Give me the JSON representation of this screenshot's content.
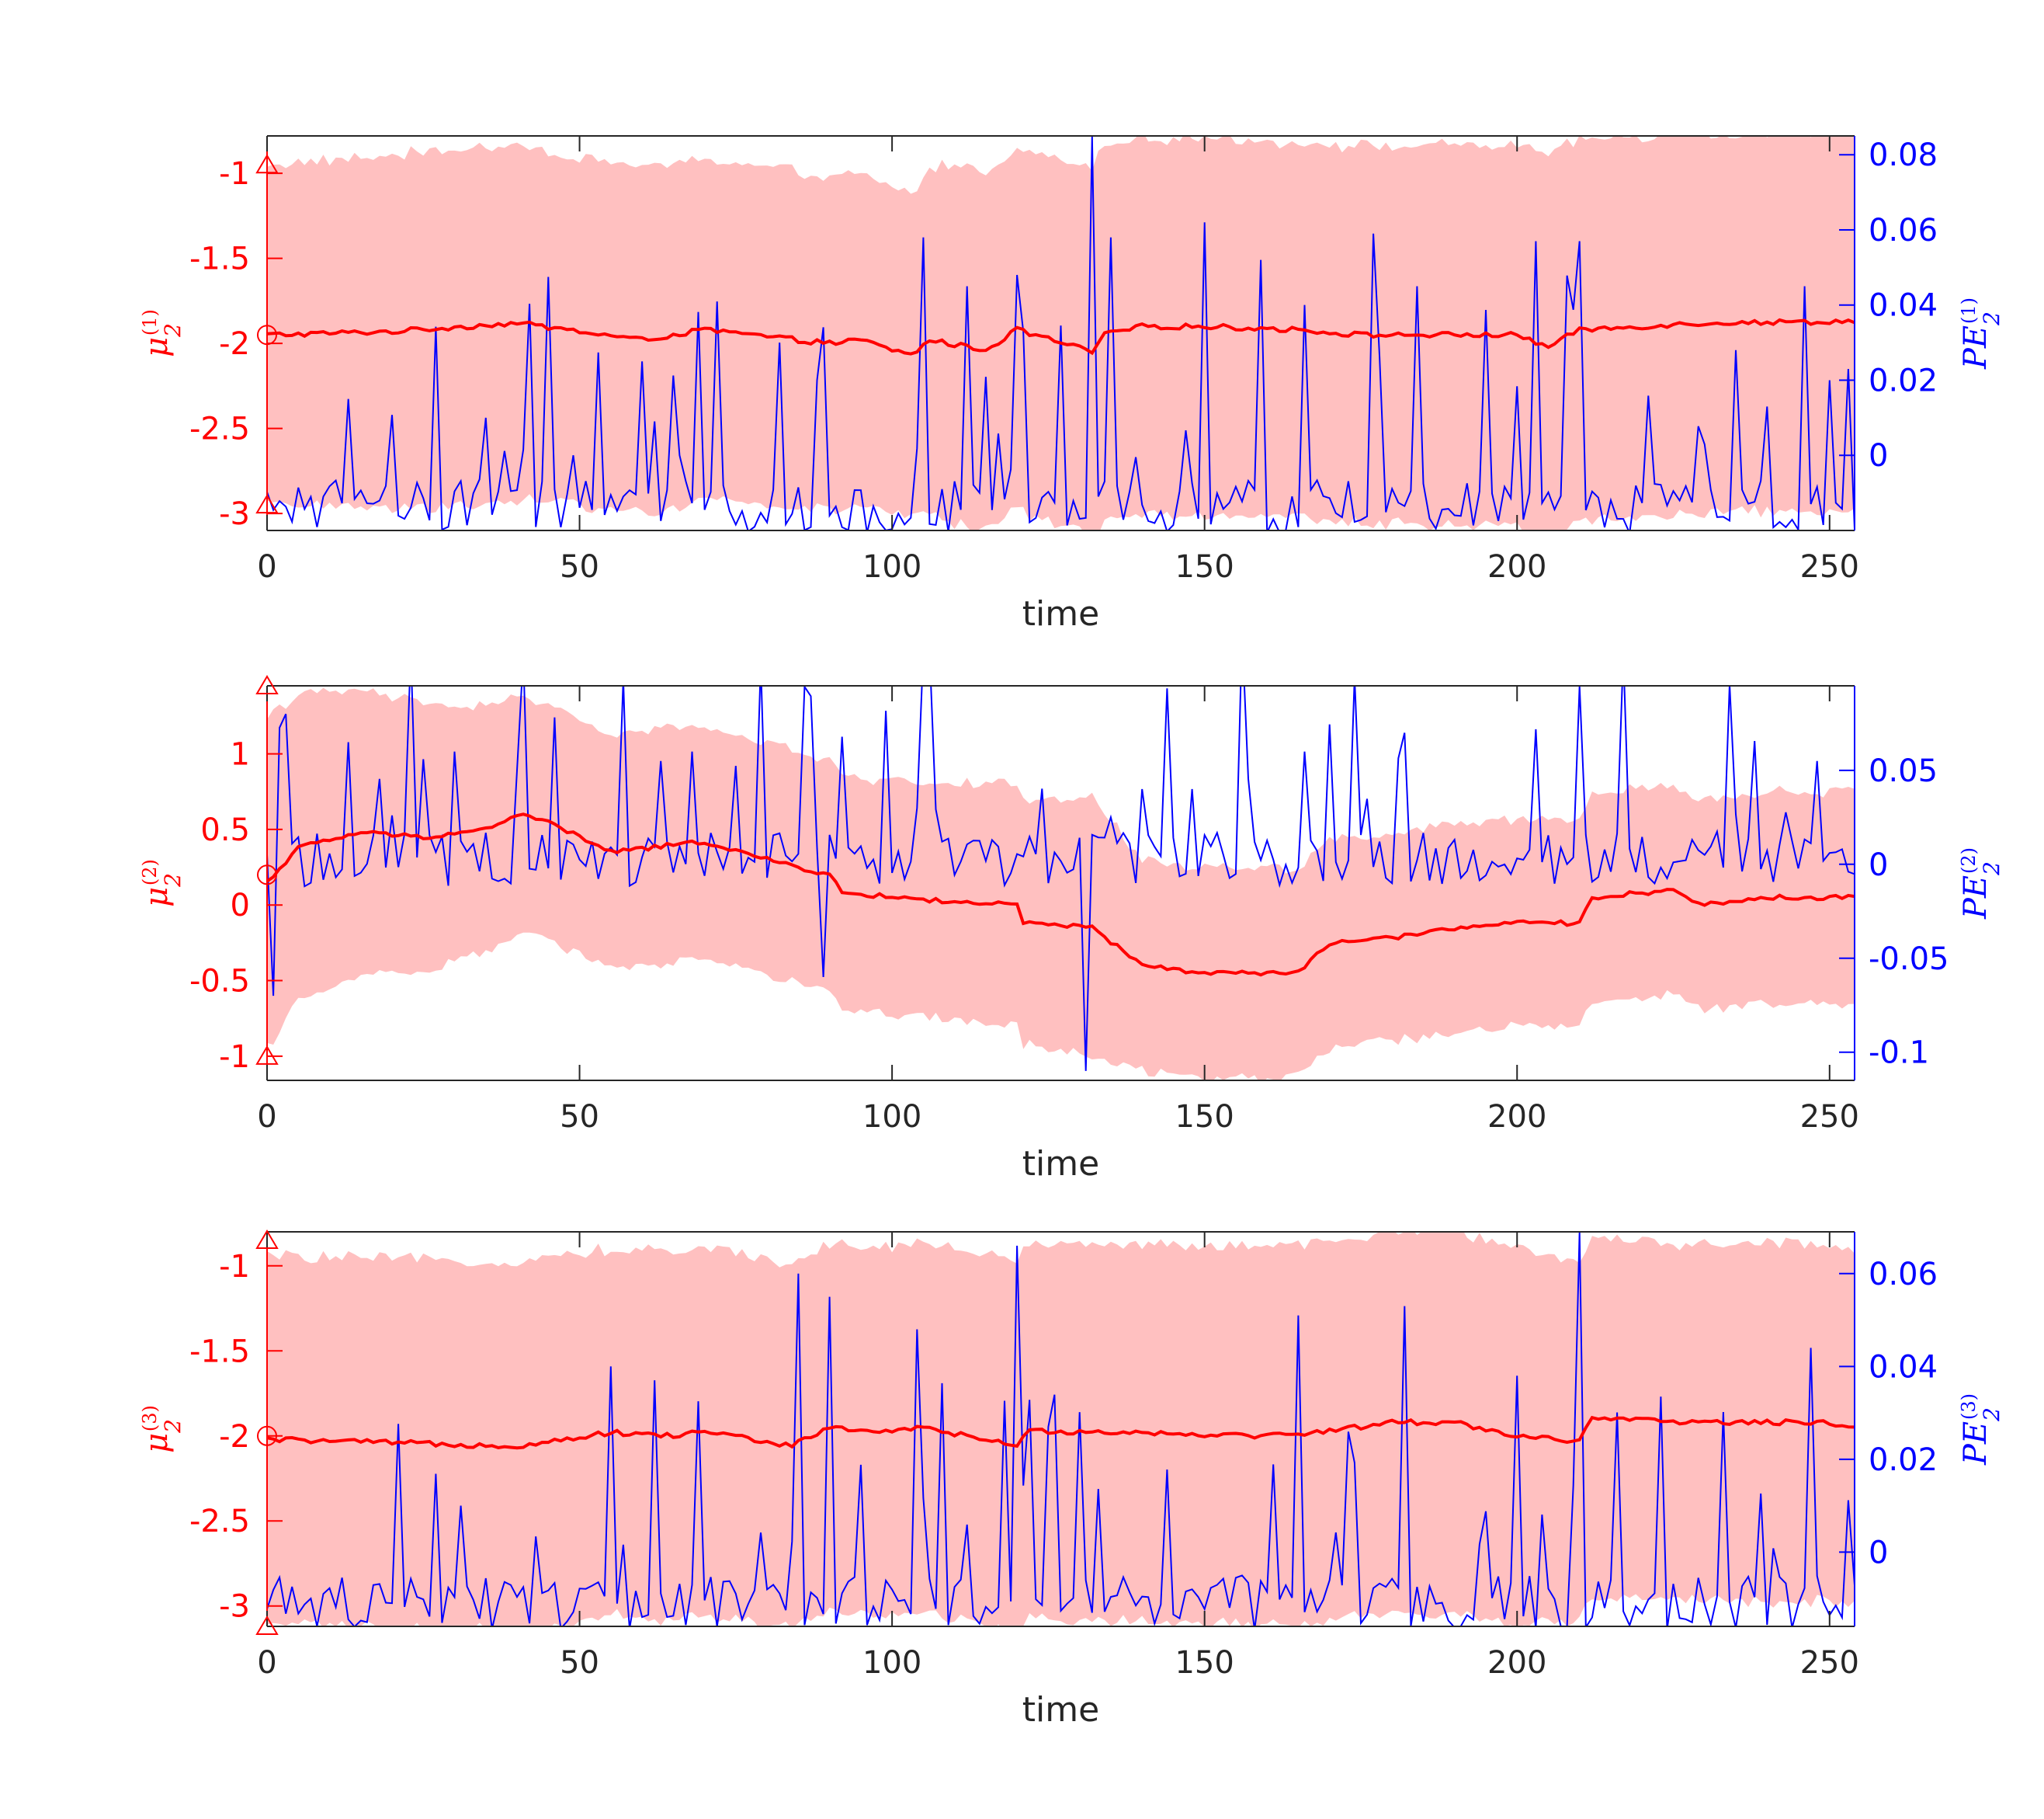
{
  "colors": {
    "mean": "#ff0000",
    "band": "#ffc0c0",
    "pe": "#0000ff",
    "axis": "#262626"
  },
  "chart_data": [
    {
      "type": "line",
      "xlabel": "time",
      "xlim": [
        0,
        254
      ],
      "xticks": [
        0,
        50,
        100,
        150,
        200,
        250
      ],
      "xtick_labels": [
        "0",
        "50",
        "100",
        "150",
        "200",
        "250"
      ],
      "left_axis": {
        "label": "μ2(1)",
        "label_base": "μ",
        "label_sub": "2",
        "label_sup": "(1)",
        "ylim": [
          -3.1,
          -0.78
        ],
        "ticks": [
          -1,
          -1.5,
          -2,
          -2.5,
          -3
        ],
        "tick_labels": [
          "-1",
          "-1.5",
          "-2",
          "-2.5",
          "-3"
        ]
      },
      "right_axis": {
        "label": "PE2(1)",
        "label_base": "PE",
        "label_sub": "2",
        "label_sup": "(1)",
        "ylim": [
          -0.02,
          0.085
        ],
        "ticks": [
          0.08,
          0.06,
          0.04,
          0.02,
          0
        ],
        "tick_labels": [
          "0.08",
          "0.06",
          "0.04",
          "0.02",
          "0"
        ]
      },
      "markers": {
        "triangles": [
          -0.95,
          -2.95
        ],
        "circle": -1.95
      },
      "mean_keyframes": [
        [
          0,
          -1.95
        ],
        [
          20,
          -1.93
        ],
        [
          40,
          -1.88
        ],
        [
          60,
          -1.98
        ],
        [
          70,
          -1.92
        ],
        [
          90,
          -2.0
        ],
        [
          95,
          -1.98
        ],
        [
          103,
          -2.07
        ],
        [
          106,
          -1.98
        ],
        [
          115,
          -2.04
        ],
        [
          120,
          -1.92
        ],
        [
          132,
          -2.05
        ],
        [
          134,
          -1.95
        ],
        [
          140,
          -1.9
        ],
        [
          150,
          -1.9
        ],
        [
          165,
          -1.92
        ],
        [
          175,
          -1.95
        ],
        [
          180,
          -1.95
        ],
        [
          200,
          -1.95
        ],
        [
          205,
          -2.02
        ],
        [
          210,
          -1.92
        ],
        [
          230,
          -1.88
        ],
        [
          254,
          -1.87
        ]
      ],
      "band_width_keyframes": [
        [
          0,
          1.0
        ],
        [
          30,
          1.05
        ],
        [
          90,
          0.98
        ],
        [
          104,
          0.95
        ],
        [
          108,
          1.05
        ],
        [
          131,
          1.08
        ],
        [
          133,
          1.12
        ],
        [
          150,
          1.1
        ],
        [
          210,
          1.12
        ],
        [
          254,
          1.1
        ]
      ],
      "pe_baseline": -0.015,
      "pe_spikes": [
        [
          13,
          0.015
        ],
        [
          35,
          0.01
        ],
        [
          49,
          0.0
        ],
        [
          60,
          0.025
        ],
        [
          66,
          0.0
        ],
        [
          82,
          0.03
        ],
        [
          88,
          0.02
        ],
        [
          105,
          0.058
        ],
        [
          112,
          0.045
        ],
        [
          120,
          0.048
        ],
        [
          132,
          0.085
        ],
        [
          135,
          0.058
        ],
        [
          150,
          0.062
        ],
        [
          159,
          0.052
        ],
        [
          166,
          0.04
        ],
        [
          177,
          0.059
        ],
        [
          184,
          0.045
        ],
        [
          203,
          0.057
        ],
        [
          210,
          0.057
        ],
        [
          235,
          0.028
        ],
        [
          246,
          0.045
        ],
        [
          250,
          0.02
        ]
      ]
    },
    {
      "type": "line",
      "xlabel": "time",
      "xlim": [
        0,
        254
      ],
      "xticks": [
        0,
        50,
        100,
        150,
        200,
        250
      ],
      "xtick_labels": [
        "0",
        "50",
        "100",
        "150",
        "200",
        "250"
      ],
      "left_axis": {
        "label": "μ2(2)",
        "label_base": "μ",
        "label_sub": "2",
        "label_sup": "(2)",
        "ylim": [
          -1.16,
          1.45
        ],
        "ticks": [
          1,
          0.5,
          0,
          -0.5,
          -1
        ],
        "tick_labels": [
          "1",
          "0.5",
          "0",
          "-0.5",
          "-1"
        ]
      },
      "right_axis": {
        "label": "PE2(2)",
        "label_base": "PE",
        "label_sub": "2",
        "label_sup": "(2)",
        "ylim": [
          -0.115,
          0.095
        ],
        "ticks": [
          0.05,
          0,
          -0.05,
          -0.1
        ],
        "tick_labels": [
          "0.05",
          "0",
          "-0.05",
          "-0.1"
        ]
      },
      "markers": {
        "triangles": [
          1.45,
          -1.0
        ],
        "circle": 0.2
      },
      "mean_keyframes": [
        [
          0,
          0.15
        ],
        [
          5,
          0.38
        ],
        [
          15,
          0.48
        ],
        [
          25,
          0.45
        ],
        [
          35,
          0.5
        ],
        [
          40,
          0.6
        ],
        [
          45,
          0.55
        ],
        [
          55,
          0.35
        ],
        [
          70,
          0.42
        ],
        [
          80,
          0.3
        ],
        [
          90,
          0.2
        ],
        [
          92,
          0.08
        ],
        [
          110,
          0.02
        ],
        [
          120,
          0.0
        ],
        [
          121,
          -0.12
        ],
        [
          132,
          -0.15
        ],
        [
          140,
          -0.4
        ],
        [
          150,
          -0.45
        ],
        [
          165,
          -0.45
        ],
        [
          170,
          -0.25
        ],
        [
          180,
          -0.22
        ],
        [
          190,
          -0.15
        ],
        [
          200,
          -0.12
        ],
        [
          210,
          -0.12
        ],
        [
          212,
          0.05
        ],
        [
          225,
          0.1
        ],
        [
          230,
          0.0
        ],
        [
          240,
          0.05
        ],
        [
          254,
          0.05
        ]
      ],
      "band_width_keyframes": [
        [
          0,
          1.1
        ],
        [
          6,
          1.0
        ],
        [
          40,
          0.78
        ],
        [
          90,
          0.76
        ],
        [
          120,
          0.8
        ],
        [
          132,
          0.86
        ],
        [
          140,
          0.7
        ],
        [
          150,
          0.7
        ],
        [
          200,
          0.68
        ],
        [
          254,
          0.7
        ]
      ],
      "pe_baseline": 0.0,
      "pe_spikes": [
        [
          1,
          -0.07
        ],
        [
          3,
          0.08
        ],
        [
          13,
          0.065
        ],
        [
          30,
          0.06
        ],
        [
          40,
          0.05
        ],
        [
          63,
          0.055
        ],
        [
          68,
          0.06
        ],
        [
          89,
          -0.06
        ],
        [
          104,
          0.03
        ],
        [
          131,
          -0.11
        ],
        [
          135,
          0.025
        ],
        [
          140,
          0.04
        ],
        [
          148,
          0.04
        ],
        [
          166,
          0.06
        ],
        [
          182,
          0.07
        ],
        [
          210,
          0.095
        ],
        [
          248,
          0.055
        ]
      ]
    },
    {
      "type": "line",
      "xlabel": "time",
      "xlim": [
        0,
        254
      ],
      "xticks": [
        0,
        50,
        100,
        150,
        200,
        250
      ],
      "xtick_labels": [
        "0",
        "50",
        "100",
        "150",
        "200",
        "250"
      ],
      "left_axis": {
        "label": "μ2(3)",
        "label_base": "μ",
        "label_sub": "2",
        "label_sup": "(3)",
        "ylim": [
          -3.12,
          -0.8
        ],
        "ticks": [
          -1,
          -1.5,
          -2,
          -2.5,
          -3
        ],
        "tick_labels": [
          "-1",
          "-1.5",
          "-2",
          "-2.5",
          "-3"
        ]
      },
      "right_axis": {
        "label": "PE2(3)",
        "label_base": "PE",
        "label_sub": "2",
        "label_sup": "(3)",
        "ylim": [
          -0.016,
          0.069
        ],
        "ticks": [
          0.06,
          0.04,
          0.02,
          0
        ],
        "tick_labels": [
          "0.06",
          "0.04",
          "0.02",
          "0"
        ]
      },
      "markers": {
        "triangles": [
          -0.85,
          -3.12
        ],
        "circle": -2.0
      },
      "mean_keyframes": [
        [
          0,
          -2.02
        ],
        [
          20,
          -2.04
        ],
        [
          40,
          -2.06
        ],
        [
          55,
          -1.98
        ],
        [
          65,
          -2.0
        ],
        [
          70,
          -1.97
        ],
        [
          84,
          -2.06
        ],
        [
          90,
          -1.95
        ],
        [
          100,
          -1.98
        ],
        [
          105,
          -1.95
        ],
        [
          120,
          -2.06
        ],
        [
          122,
          -1.97
        ],
        [
          140,
          -1.98
        ],
        [
          160,
          -2.0
        ],
        [
          170,
          -1.97
        ],
        [
          180,
          -1.92
        ],
        [
          190,
          -1.92
        ],
        [
          200,
          -2.0
        ],
        [
          210,
          -2.03
        ],
        [
          212,
          -1.9
        ],
        [
          230,
          -1.92
        ],
        [
          248,
          -1.92
        ],
        [
          254,
          -1.94
        ]
      ],
      "band_width_keyframes": [
        [
          0,
          1.08
        ],
        [
          40,
          1.08
        ],
        [
          90,
          1.08
        ],
        [
          120,
          1.1
        ],
        [
          200,
          1.12
        ],
        [
          210,
          1.05
        ],
        [
          254,
          1.05
        ]
      ],
      "pe_baseline": -0.012,
      "pe_spikes": [
        [
          31,
          0.01
        ],
        [
          55,
          0.04
        ],
        [
          62,
          0.037
        ],
        [
          85,
          0.06
        ],
        [
          90,
          0.055
        ],
        [
          104,
          0.048
        ],
        [
          120,
          0.066
        ],
        [
          165,
          0.051
        ],
        [
          182,
          0.053
        ],
        [
          200,
          0.038
        ],
        [
          210,
          0.069
        ],
        [
          247,
          0.044
        ]
      ]
    }
  ]
}
